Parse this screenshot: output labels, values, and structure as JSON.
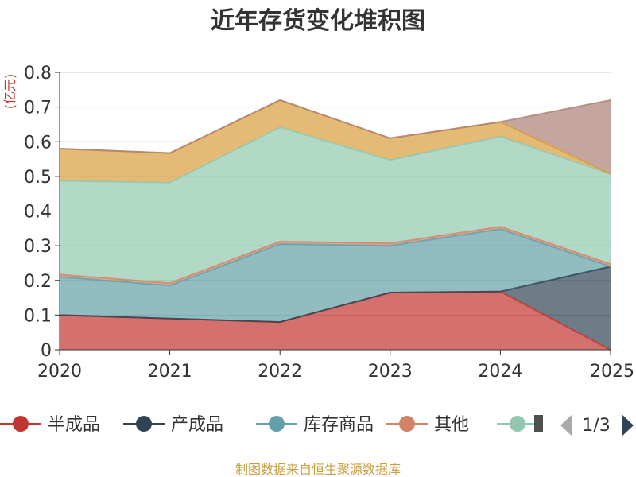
{
  "chart_data": {
    "type": "area",
    "title": "近年存货变化堆积图",
    "ylabel": "(亿元)",
    "xlabel": "",
    "ylim": [
      0,
      0.8
    ],
    "yticks": [
      "0",
      "0.1",
      "0.2",
      "0.3",
      "0.4",
      "0.5",
      "0.6",
      "0.7",
      "0.8"
    ],
    "categories": [
      "2020",
      "2021",
      "2022",
      "2023",
      "2024",
      "2025"
    ],
    "grid": true,
    "stacked": true,
    "series": [
      {
        "name": "半成品",
        "color": "#c23531",
        "values": [
          0.1,
          0.09,
          0.08,
          0.165,
          0.168,
          0.0
        ]
      },
      {
        "name": "产成品",
        "color": "#2f4554",
        "values": [
          0.0,
          0.0,
          0.0,
          0.0,
          0.0,
          0.24
        ]
      },
      {
        "name": "库存商品",
        "color": "#61a0a8",
        "values": [
          0.11,
          0.095,
          0.225,
          0.135,
          0.18,
          0.0
        ]
      },
      {
        "name": "其他",
        "color": "#d48265",
        "values": [
          0.007,
          0.007,
          0.007,
          0.007,
          0.007,
          0.007
        ]
      },
      {
        "name": "",
        "color": "#91c7ae",
        "values": [
          0.27,
          0.29,
          0.33,
          0.24,
          0.26,
          0.26
        ]
      },
      {
        "name": "",
        "color": "#d89c3a",
        "values": [
          0.093,
          0.085,
          0.078,
          0.063,
          0.042,
          0.0
        ]
      },
      {
        "name": "",
        "color": "#ac8075",
        "values": [
          0.0,
          0.0,
          0.0,
          0.0,
          0.0,
          0.213
        ]
      }
    ],
    "legend": {
      "position": "bottom",
      "visible_items": [
        {
          "label": "半成品",
          "color": "#c23531"
        },
        {
          "label": "产成品",
          "color": "#2f4554"
        },
        {
          "label": "库存商品",
          "color": "#61a0a8"
        },
        {
          "label": "其他",
          "color": "#d48265"
        },
        {
          "label": "",
          "color": "#91c7ae"
        }
      ],
      "page": "1/3"
    }
  },
  "source_text": "制图数据来自恒生聚源数据库"
}
